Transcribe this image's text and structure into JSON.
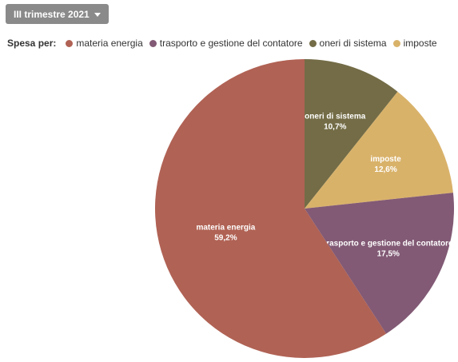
{
  "period_selector": {
    "label": "III trimestre 2021"
  },
  "legend": {
    "title": "Spesa per:"
  },
  "chart_data": {
    "type": "pie",
    "categories": [
      "oneri di sistema",
      "imposte",
      "trasporto e gestione del contatore",
      "materia energia"
    ],
    "values": [
      10.7,
      12.6,
      17.5,
      59.2
    ],
    "value_labels": [
      "10,7%",
      "12,6%",
      "17,5%",
      "59,2%"
    ],
    "colors": [
      "#736c46",
      "#d9b26a",
      "#825a75",
      "#b06254"
    ],
    "legend_order": [
      "materia energia",
      "trasporto e gestione del contatore",
      "oneri di sistema",
      "imposte"
    ],
    "title": "",
    "legend_placement": "top-left"
  }
}
